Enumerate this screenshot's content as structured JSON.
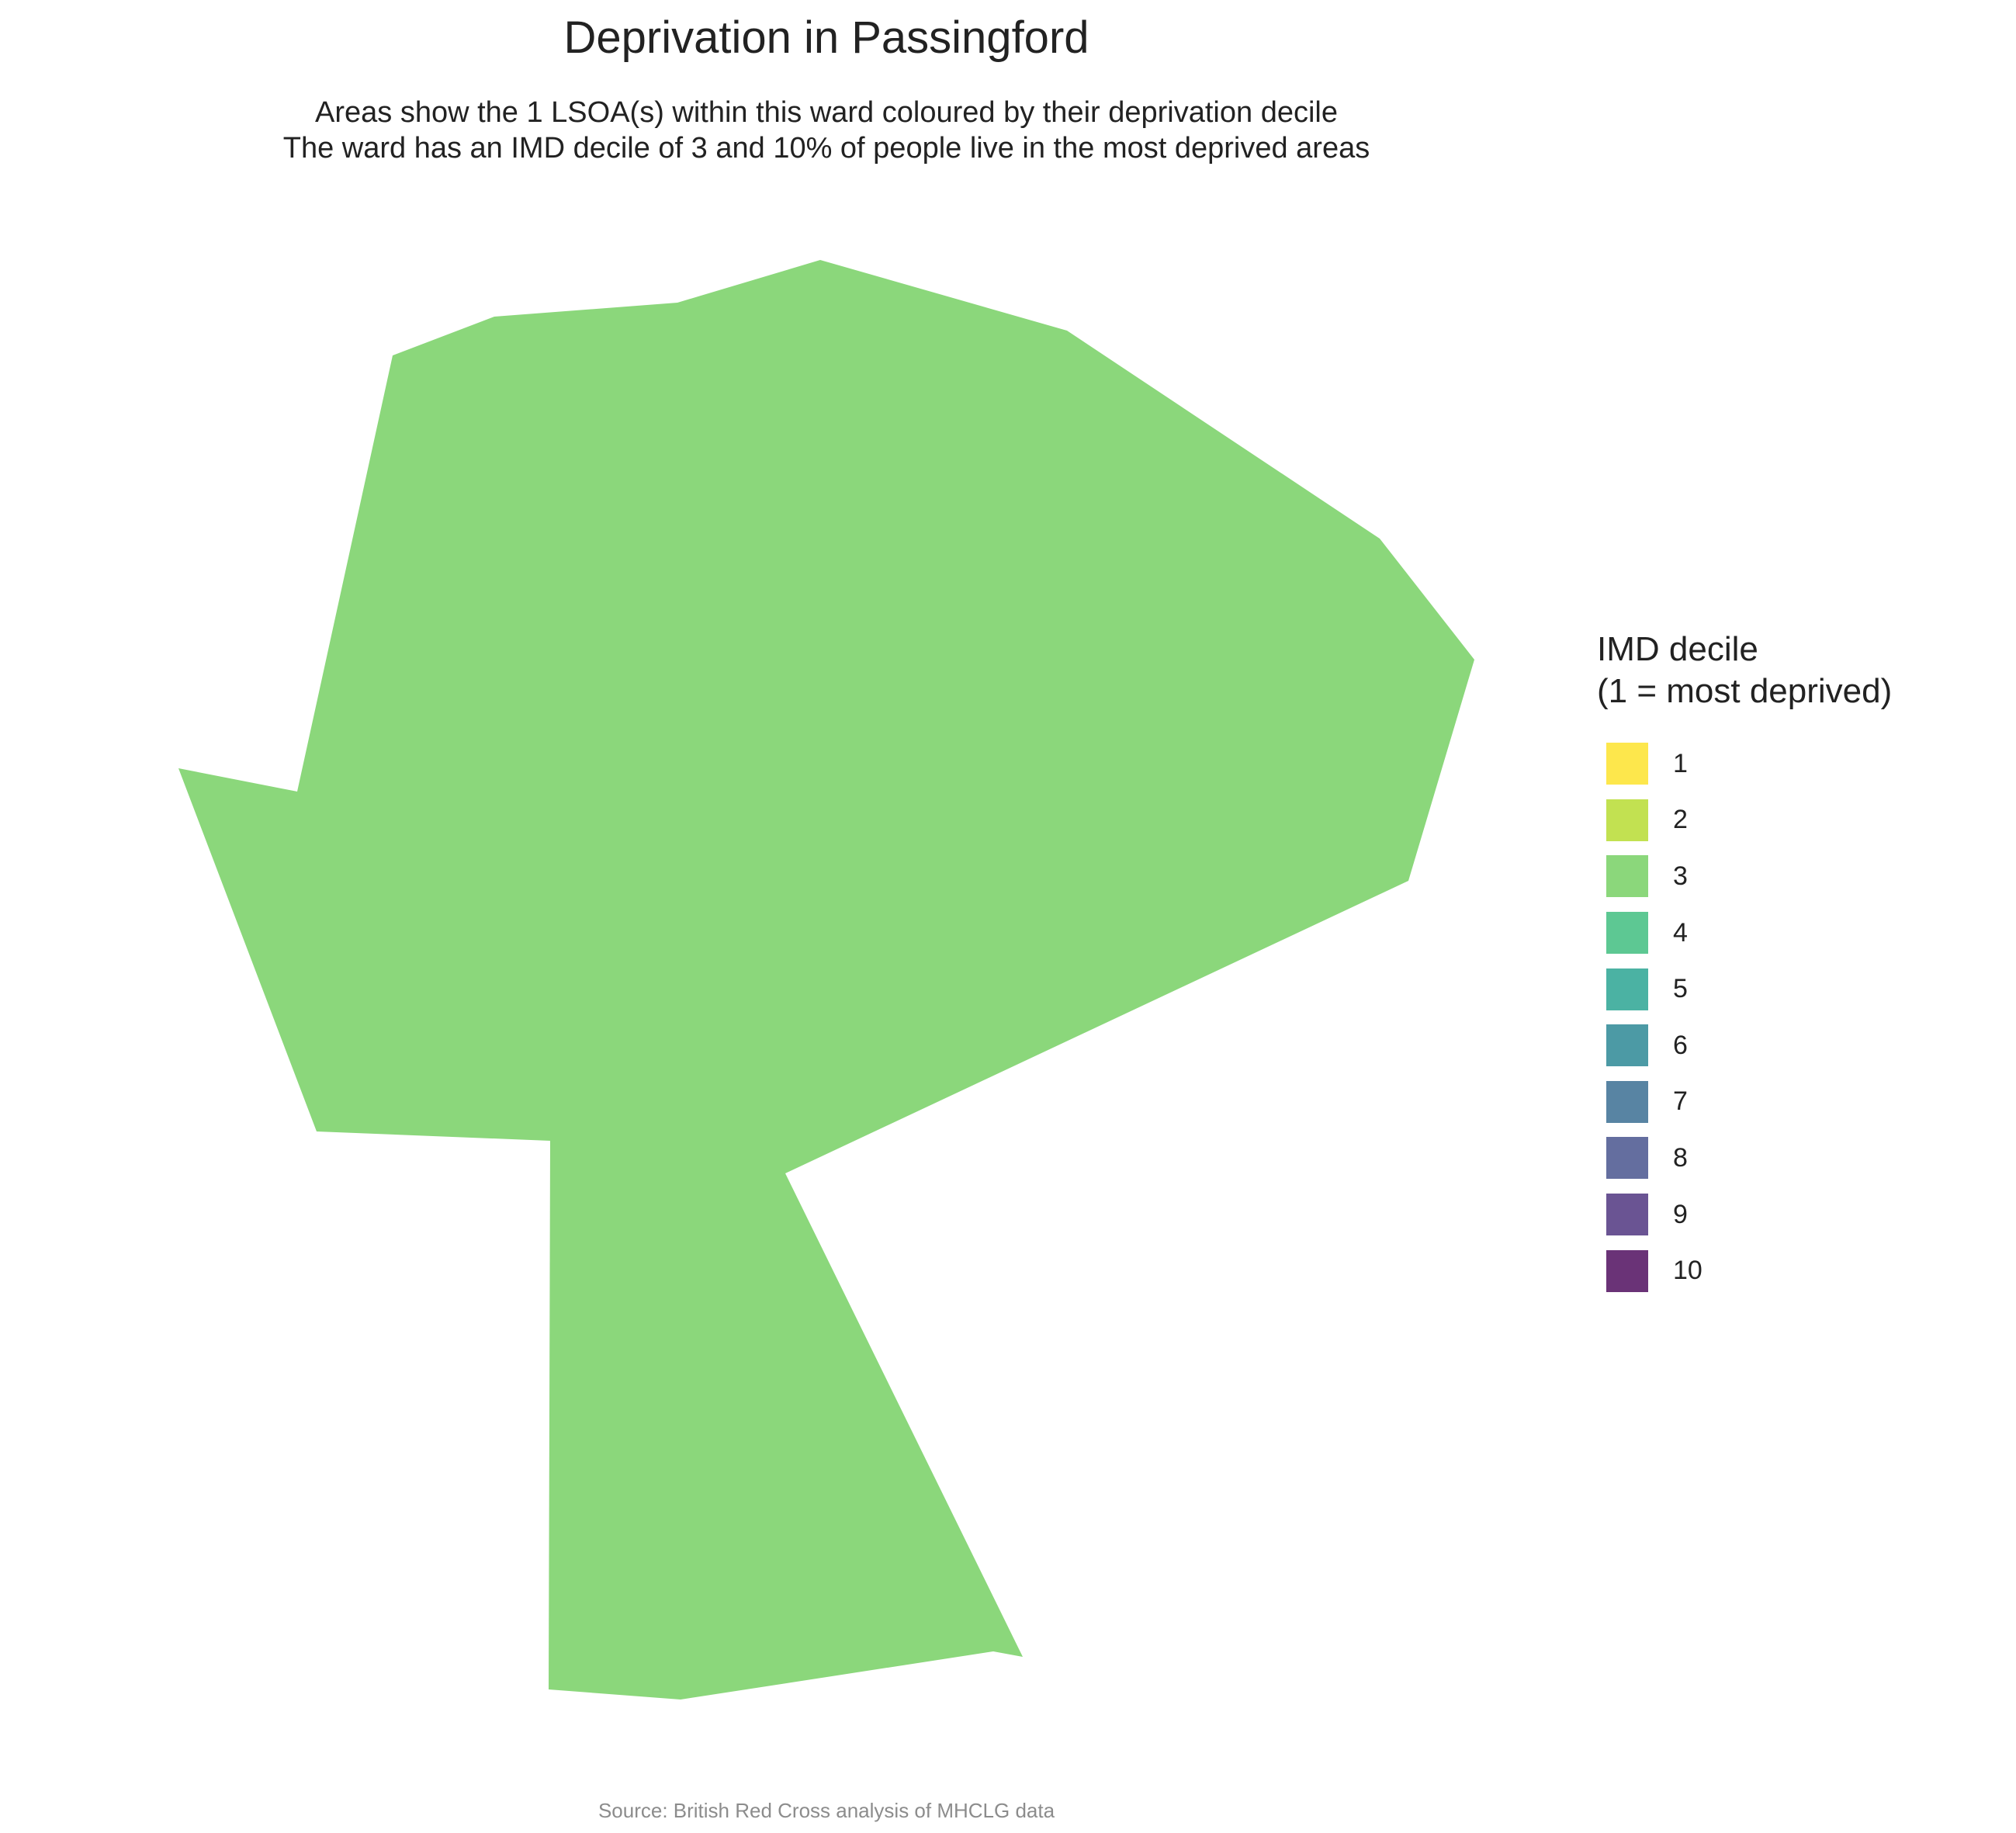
{
  "chart_data": {
    "type": "choropleth",
    "title": "Deprivation in Passingford",
    "subtitle_lines": [
      "Areas show the 1 LSOA(s) within this ward coloured by their deprivation decile",
      "The ward has an IMD decile of 3 and 10% of people live in the most deprived areas"
    ],
    "areas": [
      {
        "imd_decile": 3,
        "color": "#8BD77B"
      }
    ],
    "legend": {
      "title_lines": [
        "IMD decile",
        "(1 = most deprived)"
      ],
      "placement": "right",
      "items": [
        {
          "label": "1",
          "color": "#FDE74C"
        },
        {
          "label": "2",
          "color": "#C2E151"
        },
        {
          "label": "3",
          "color": "#8BD77B"
        },
        {
          "label": "4",
          "color": "#5DC893"
        },
        {
          "label": "5",
          "color": "#4BB2A3"
        },
        {
          "label": "6",
          "color": "#4C9AA5"
        },
        {
          "label": "7",
          "color": "#5884A3"
        },
        {
          "label": "8",
          "color": "#646E9F"
        },
        {
          "label": "9",
          "color": "#6A5493"
        },
        {
          "label": "10",
          "color": "#6A3377"
        }
      ]
    },
    "caption": "Source: British Red Cross analysis of MHCLG data"
  }
}
